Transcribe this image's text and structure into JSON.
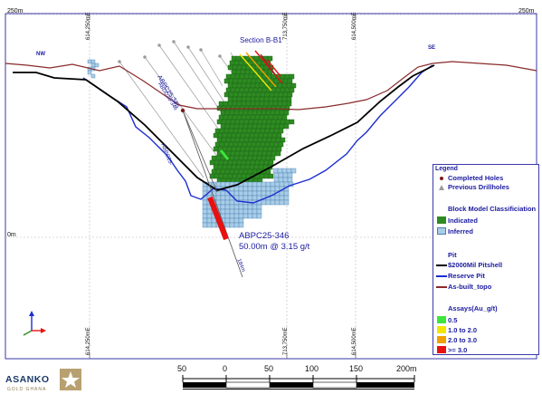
{
  "section_title": "Section B-B1",
  "corners": {
    "top_left": "250m",
    "top_right": "250m",
    "mid_left": "0m"
  },
  "eastings": [
    "614,250mE",
    "713,750mE",
    "614,500mE"
  ],
  "directions": {
    "left": "NW",
    "right": "SE"
  },
  "hole_labels": [
    "ABPC25-346",
    "ABDD25-346"
  ],
  "hole_label_small": "ABPC25-",
  "depth_label": "184m",
  "intercept": {
    "hole": "ABPC25-346",
    "result": "50.00m @ 3.15 g/t"
  },
  "legend": {
    "title": "Legend",
    "completed_holes": "Completed Holes",
    "previous_drillholes": "Previous Drillholes",
    "block_model_title": "Block Model Classificiation",
    "indicated": "Indicated",
    "inferred": "Inferred",
    "pit_title": "Pit",
    "pitshell": "$2000Mil Pitshell",
    "reserve_pit": "Reserve Pit",
    "topo": "As-built_topo",
    "assays_title": "Assays(Au_g/t)",
    "assay_bins": [
      "0.5",
      "1.0 to 2.0",
      "2.0 to 3.0",
      ">= 3.0"
    ]
  },
  "scale": {
    "labels": [
      "50",
      "0",
      "50",
      "100",
      "150",
      "200m"
    ]
  },
  "logo": {
    "name": "ASANKO",
    "sub": "GOLD GHANA"
  },
  "colors": {
    "indicated": "#2e8b22",
    "inferred": "#a9cde8",
    "pitshell": "#000000",
    "reserve_pit": "#1c2ed0",
    "topo": "#8a2a2a",
    "assay_05": "#3ce63c",
    "assay_1_2": "#f2e600",
    "assay_2_3": "#f2a000",
    "assay_3": "#e81010",
    "legend_text": "#1a1aa0",
    "frame": "#3a3aa8"
  }
}
